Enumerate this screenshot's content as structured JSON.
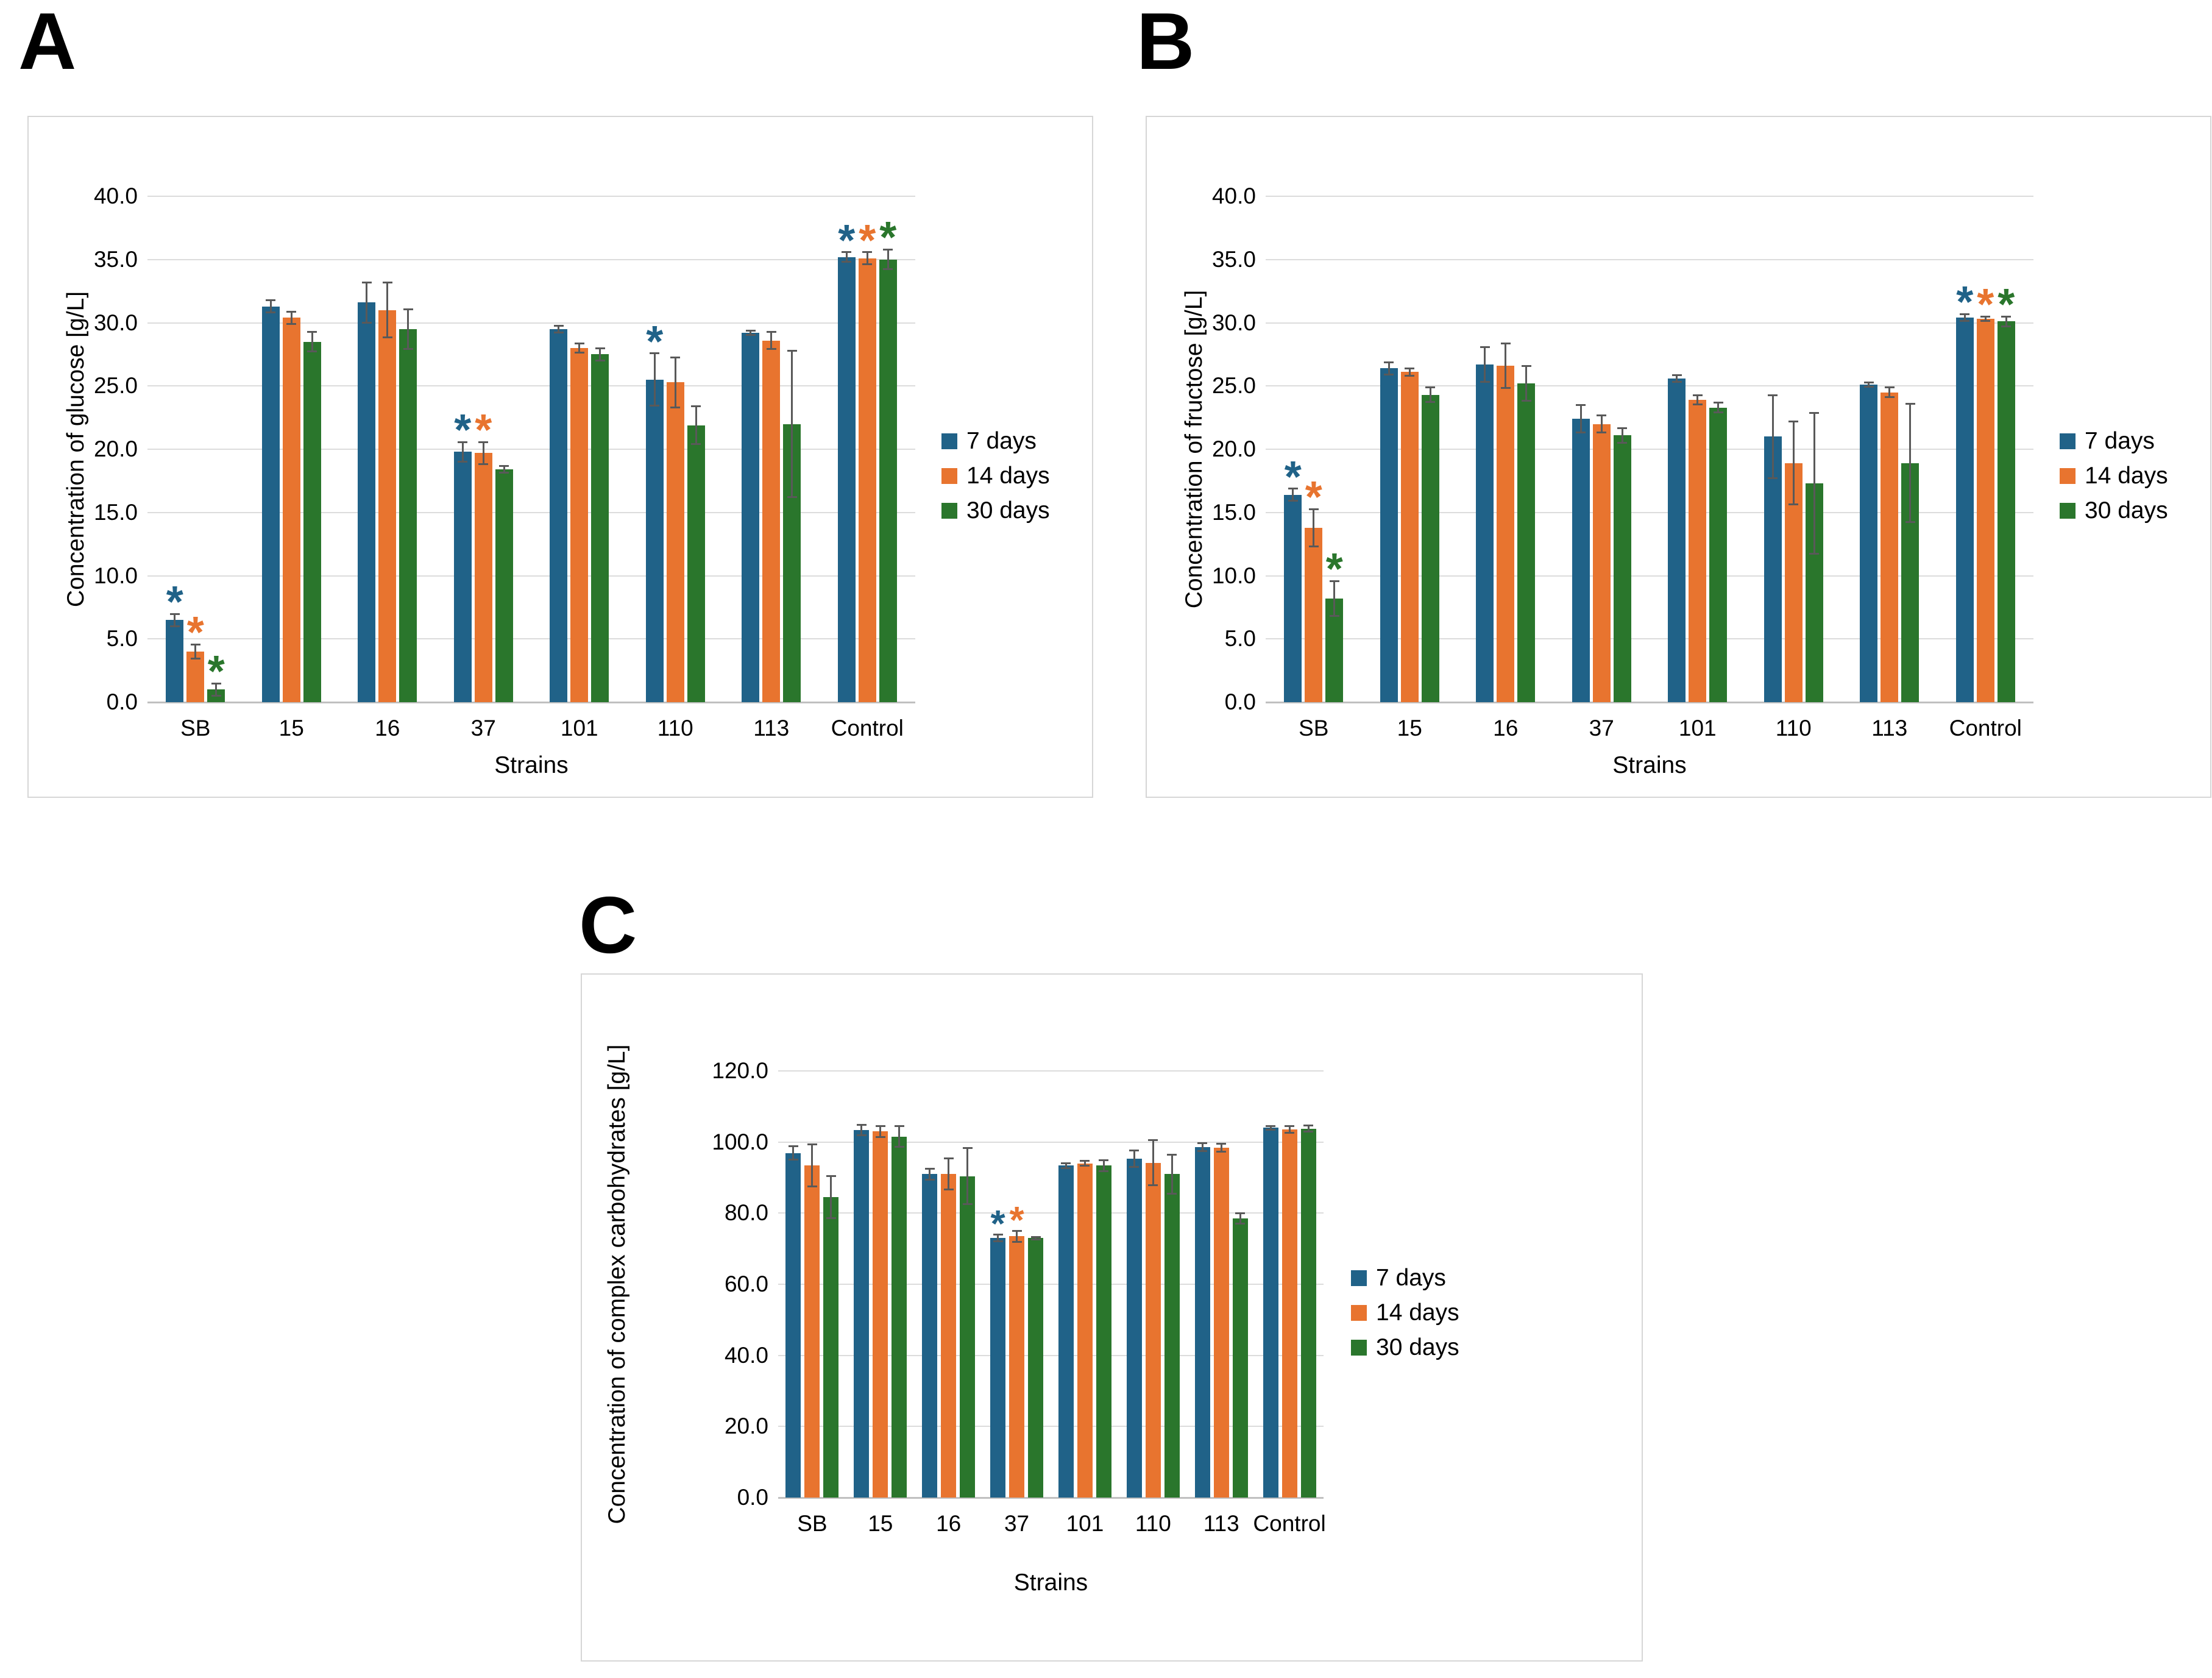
{
  "chart_data": [
    {
      "panel_label": "A",
      "type": "bar",
      "title": "",
      "ylabel": "Concentration of glucose [g/L]",
      "xlabel": "Strains",
      "ylim": [
        0,
        40
      ],
      "ytick_step": 5,
      "grid": true,
      "legend_position": "right",
      "categories": [
        "SB",
        "15",
        "16",
        "37",
        "101",
        "110",
        "113",
        "Control"
      ],
      "series": [
        {
          "name": "7 days",
          "color": "#206288",
          "values": [
            6.5,
            31.3,
            31.6,
            19.8,
            29.5,
            25.5,
            29.2,
            35.2
          ],
          "errors": [
            0.5,
            0.5,
            1.6,
            0.8,
            0.3,
            2.1,
            0.2,
            0.4
          ],
          "significant_categories": [
            0,
            3,
            5,
            7
          ]
        },
        {
          "name": "14 days",
          "color": "#E8742F",
          "values": [
            4.0,
            30.4,
            31.0,
            19.7,
            28.0,
            25.3,
            28.6,
            35.1
          ],
          "errors": [
            0.6,
            0.5,
            2.2,
            0.9,
            0.4,
            2.0,
            0.7,
            0.5
          ],
          "significant_categories": [
            0,
            3,
            7
          ]
        },
        {
          "name": "30 days",
          "color": "#2A762C",
          "values": [
            1.0,
            28.5,
            29.5,
            18.4,
            27.5,
            21.9,
            22.0,
            35.0
          ],
          "errors": [
            0.5,
            0.8,
            1.6,
            0.3,
            0.5,
            1.5,
            5.8,
            0.8
          ],
          "significant_categories": [
            0,
            7
          ]
        }
      ]
    },
    {
      "panel_label": "B",
      "type": "bar",
      "title": "",
      "ylabel": "Concentration of fructose [g/L]",
      "xlabel": "Strains",
      "ylim": [
        0,
        40
      ],
      "ytick_step": 5,
      "grid": true,
      "legend_position": "right",
      "categories": [
        "SB",
        "15",
        "16",
        "37",
        "101",
        "110",
        "113",
        "Control"
      ],
      "series": [
        {
          "name": "7 days",
          "color": "#206288",
          "values": [
            16.4,
            26.4,
            26.7,
            22.4,
            25.6,
            21.0,
            25.1,
            30.4
          ],
          "errors": [
            0.5,
            0.5,
            1.4,
            1.1,
            0.3,
            3.3,
            0.2,
            0.3
          ],
          "significant_categories": [
            0,
            7
          ]
        },
        {
          "name": "14 days",
          "color": "#E8742F",
          "values": [
            13.8,
            26.1,
            26.6,
            22.0,
            23.9,
            18.9,
            24.5,
            30.3
          ],
          "errors": [
            1.5,
            0.3,
            1.8,
            0.7,
            0.4,
            3.3,
            0.4,
            0.2
          ],
          "significant_categories": [
            0,
            7
          ]
        },
        {
          "name": "30 days",
          "color": "#2A762C",
          "values": [
            8.2,
            24.3,
            25.2,
            21.1,
            23.3,
            17.3,
            18.9,
            30.1
          ],
          "errors": [
            1.4,
            0.6,
            1.4,
            0.6,
            0.4,
            5.6,
            4.7,
            0.4
          ],
          "significant_categories": [
            0,
            7
          ]
        }
      ]
    },
    {
      "panel_label": "C",
      "type": "bar",
      "title": "",
      "ylabel": "Concentration of complex carbohydrates [g/L]",
      "xlabel": "Strains",
      "ylim": [
        0,
        120
      ],
      "ytick_step": 20,
      "grid": true,
      "legend_position": "right",
      "categories": [
        "SB",
        "15",
        "16",
        "37",
        "101",
        "110",
        "113",
        "Control"
      ],
      "series": [
        {
          "name": "7 days",
          "color": "#206288",
          "values": [
            96.9,
            103.4,
            91.0,
            73.0,
            93.4,
            95.4,
            98.5,
            104.0
          ],
          "errors": [
            2.0,
            1.5,
            1.6,
            1.0,
            0.8,
            2.4,
            1.2,
            0.6
          ],
          "significant_categories": [
            3
          ]
        },
        {
          "name": "14 days",
          "color": "#E8742F",
          "values": [
            93.4,
            103.0,
            91.0,
            73.5,
            94.0,
            94.2,
            98.4,
            103.6
          ],
          "errors": [
            6.0,
            1.6,
            4.5,
            1.6,
            0.8,
            6.4,
            1.2,
            1.0
          ],
          "significant_categories": [
            3
          ]
        },
        {
          "name": "30 days",
          "color": "#2A762C",
          "values": [
            84.5,
            101.5,
            90.4,
            73.0,
            93.4,
            91.0,
            78.5,
            103.8
          ],
          "errors": [
            6.0,
            3.0,
            8.0,
            0.4,
            1.6,
            5.6,
            1.6,
            1.0
          ],
          "significant_categories": []
        }
      ]
    }
  ],
  "styles": {
    "error_bar_color": "#595959",
    "gridline_color": "#dcdcdc",
    "baseline_color": "#c0c0c0",
    "box_border_color": "#d6d6d6",
    "significance_marker": "*"
  }
}
